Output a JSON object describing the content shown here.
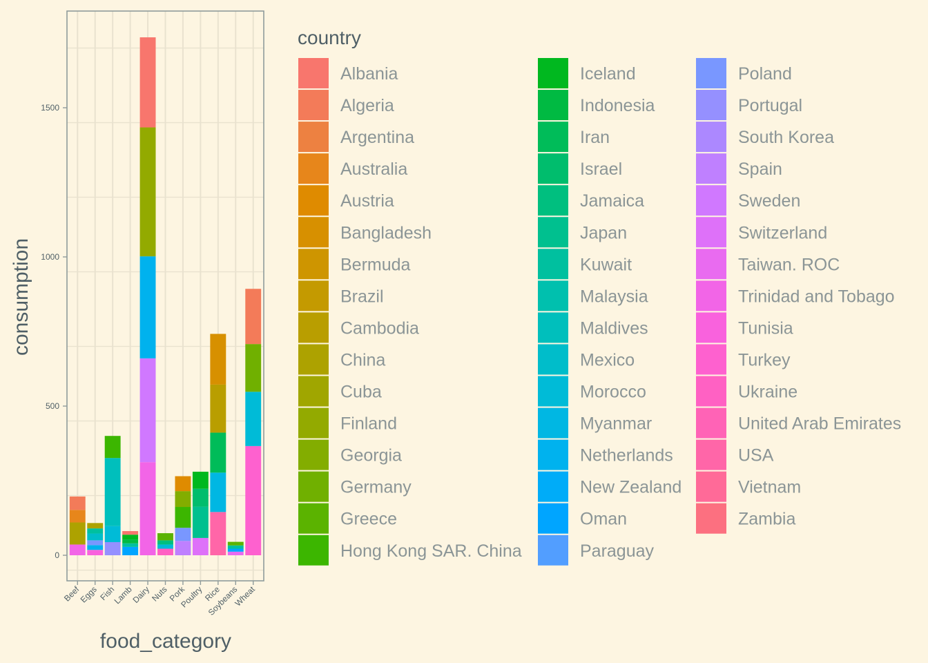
{
  "chart_data": {
    "type": "bar",
    "stacked": true,
    "xlabel": "food_category",
    "ylabel": "consumption",
    "ylim": [
      0,
      1800
    ],
    "yticks": [
      0,
      500,
      1000,
      1500
    ],
    "grid": true,
    "categories": [
      "Beef",
      "Eggs",
      "Fish",
      "Lamb",
      "Dairy",
      "Nuts",
      "Pork",
      "Poultry",
      "Rice",
      "Soybeans",
      "Wheat"
    ],
    "legend": {
      "title": "country",
      "position": "right",
      "items": [
        {
          "name": "Albania",
          "color": "#F8766D"
        },
        {
          "name": "Algeria",
          "color": "#F37B59"
        },
        {
          "name": "Argentina",
          "color": "#ED8141"
        },
        {
          "name": "Australia",
          "color": "#E7861B"
        },
        {
          "name": "Austria",
          "color": "#DF8B00"
        },
        {
          "name": "Bangladesh",
          "color": "#D79000"
        },
        {
          "name": "Bermuda",
          "color": "#CE9500"
        },
        {
          "name": "Brazil",
          "color": "#C49A00"
        },
        {
          "name": "Cambodia",
          "color": "#B99E00"
        },
        {
          "name": "China",
          "color": "#ADA200"
        },
        {
          "name": "Cuba",
          "color": "#A0A600"
        },
        {
          "name": "Finland",
          "color": "#93AA00"
        },
        {
          "name": "Georgia",
          "color": "#83AD00"
        },
        {
          "name": "Germany",
          "color": "#70B000"
        },
        {
          "name": "Greece",
          "color": "#5BB300"
        },
        {
          "name": "Hong Kong SAR. China",
          "color": "#3CB600"
        },
        {
          "name": "Iceland",
          "color": "#00B81F"
        },
        {
          "name": "Indonesia",
          "color": "#00BA42"
        },
        {
          "name": "Iran",
          "color": "#00BC59"
        },
        {
          "name": "Israel",
          "color": "#00BD6D"
        },
        {
          "name": "Jamaica",
          "color": "#00BF7F"
        },
        {
          "name": "Japan",
          "color": "#00C08F"
        },
        {
          "name": "Kuwait",
          "color": "#00C09F"
        },
        {
          "name": "Malaysia",
          "color": "#00C0AE"
        },
        {
          "name": "Maldives",
          "color": "#00BFBC"
        },
        {
          "name": "Mexico",
          "color": "#00BDCA"
        },
        {
          "name": "Morocco",
          "color": "#00BBD7"
        },
        {
          "name": "Myanmar",
          "color": "#00B7E3"
        },
        {
          "name": "Netherlands",
          "color": "#00B2EE"
        },
        {
          "name": "New Zealand",
          "color": "#00ACF8"
        },
        {
          "name": "Oman",
          "color": "#00A5FF"
        },
        {
          "name": "Paraguay",
          "color": "#529EFF"
        },
        {
          "name": "Poland",
          "color": "#7997FF"
        },
        {
          "name": "Portugal",
          "color": "#9590FF"
        },
        {
          "name": "South Korea",
          "color": "#AC88FF"
        },
        {
          "name": "Spain",
          "color": "#BF80FF"
        },
        {
          "name": "Sweden",
          "color": "#D078FF"
        },
        {
          "name": "Switzerland",
          "color": "#DE71F9"
        },
        {
          "name": "Taiwan. ROC",
          "color": "#E96BF0"
        },
        {
          "name": "Trinidad and Tobago",
          "color": "#F265E7"
        },
        {
          "name": "Tunisia",
          "color": "#F962DD"
        },
        {
          "name": "Turkey",
          "color": "#FE61CF"
        },
        {
          "name": "Ukraine",
          "color": "#FF61C3"
        },
        {
          "name": "United Arab Emirates",
          "color": "#FF63B6"
        },
        {
          "name": "USA",
          "color": "#FF66A8"
        },
        {
          "name": "Vietnam",
          "color": "#FF6A98"
        },
        {
          "name": "Zambia",
          "color": "#FC7080"
        }
      ]
    },
    "stacks": [
      {
        "category": "Beef",
        "segments": [
          {
            "country": "Trinidad and Tobago",
            "value": 36
          },
          {
            "country": "China",
            "value": 74
          },
          {
            "country": "Australia",
            "value": 42
          },
          {
            "country": "Algeria",
            "value": 45
          }
        ]
      },
      {
        "category": "Eggs",
        "segments": [
          {
            "country": "Tunisia",
            "value": 18
          },
          {
            "country": "Netherlands",
            "value": 16
          },
          {
            "country": "Poland",
            "value": 16
          },
          {
            "country": "Mexico",
            "value": 23
          },
          {
            "country": "Kuwait",
            "value": 17
          },
          {
            "country": "China",
            "value": 18
          }
        ]
      },
      {
        "category": "Fish",
        "segments": [
          {
            "country": "Portugal",
            "value": 44
          },
          {
            "country": "Morocco",
            "value": 54
          },
          {
            "country": "Maldives",
            "value": 228
          },
          {
            "country": "Hong Kong SAR. China",
            "value": 74
          }
        ]
      },
      {
        "category": "Lamb",
        "segments": [
          {
            "country": "Oman",
            "value": 28
          },
          {
            "country": "Kuwait",
            "value": 12
          },
          {
            "country": "Indonesia",
            "value": 13
          },
          {
            "country": "Iceland",
            "value": 16
          },
          {
            "country": "Albania",
            "value": 12
          }
        ]
      },
      {
        "category": "Dairy",
        "segments": [
          {
            "country": "Trinidad and Tobago",
            "value": 312
          },
          {
            "country": "Sweden",
            "value": 348
          },
          {
            "country": "Netherlands",
            "value": 342
          },
          {
            "country": "Finland",
            "value": 432
          },
          {
            "country": "Albania",
            "value": 302
          }
        ]
      },
      {
        "category": "Nuts",
        "segments": [
          {
            "country": "Ukraine",
            "value": 22
          },
          {
            "country": "Morocco",
            "value": 14
          },
          {
            "country": "Jamaica",
            "value": 14
          },
          {
            "country": "Greece",
            "value": 24
          }
        ]
      },
      {
        "category": "Pork",
        "segments": [
          {
            "country": "Spain",
            "value": 48
          },
          {
            "country": "Poland",
            "value": 44
          },
          {
            "country": "Hong Kong SAR. China",
            "value": 70
          },
          {
            "country": "Georgia",
            "value": 53
          },
          {
            "country": "Austria",
            "value": 50
          }
        ]
      },
      {
        "category": "Poultry",
        "segments": [
          {
            "country": "Switzerland",
            "value": 58
          },
          {
            "country": "Japan",
            "value": 105
          },
          {
            "country": "Israel",
            "value": 60
          },
          {
            "country": "Iceland",
            "value": 57
          }
        ]
      },
      {
        "category": "Rice",
        "segments": [
          {
            "country": "USA",
            "value": 145
          },
          {
            "country": "Myanmar",
            "value": 132
          },
          {
            "country": "Iran",
            "value": 134
          },
          {
            "country": "Cambodia",
            "value": 161
          },
          {
            "country": "Bangladesh",
            "value": 170
          }
        ]
      },
      {
        "category": "Soybeans",
        "segments": [
          {
            "country": "Taiwan. ROC",
            "value": 12
          },
          {
            "country": "Oman",
            "value": 10
          },
          {
            "country": "Kuwait",
            "value": 11
          },
          {
            "country": "Greece",
            "value": 12
          }
        ]
      },
      {
        "category": "Wheat",
        "segments": [
          {
            "country": "Turkey",
            "value": 366
          },
          {
            "country": "Morocco",
            "value": 182
          },
          {
            "country": "Germany",
            "value": 160
          },
          {
            "country": "Algeria",
            "value": 185
          }
        ]
      }
    ]
  }
}
